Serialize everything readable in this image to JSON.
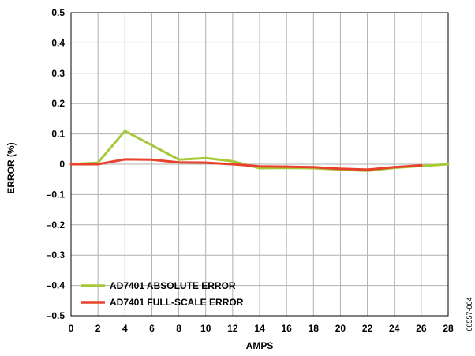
{
  "chart_data": {
    "type": "line",
    "xlabel": "AMPS",
    "ylabel": "ERROR (%)",
    "xlim": [
      0,
      28
    ],
    "ylim": [
      -0.5,
      0.5
    ],
    "x_ticks": [
      "0",
      "2",
      "4",
      "6",
      "8",
      "10",
      "12",
      "14",
      "16",
      "18",
      "20",
      "22",
      "24",
      "26",
      "28"
    ],
    "y_ticks": [
      "0.5",
      "0.4",
      "0.3",
      "0.2",
      "0.1",
      "0",
      "–0.1",
      "–0.2",
      "–0.3",
      "–0.4",
      "–0.5"
    ],
    "grid": true,
    "legend_position": "bottom-left",
    "series": [
      {
        "name": "AD7401 ABSOLUTE ERROR",
        "color": "#a6c93c",
        "x": [
          0,
          2,
          4,
          8,
          10,
          12,
          14,
          16,
          18,
          20,
          22,
          24,
          26,
          28
        ],
        "y": [
          0.0,
          0.005,
          0.11,
          0.015,
          0.02,
          0.01,
          -0.013,
          -0.012,
          -0.013,
          -0.018,
          -0.022,
          -0.012,
          -0.006,
          0.0
        ]
      },
      {
        "name": "AD7401 FULL-SCALE ERROR",
        "color": "#e8412c",
        "x": [
          0,
          2,
          4,
          6,
          8,
          10,
          12,
          14,
          16,
          18,
          20,
          22,
          24,
          26
        ],
        "y": [
          0.0,
          0.0,
          0.016,
          0.015,
          0.006,
          0.005,
          0.0,
          -0.007,
          -0.008,
          -0.01,
          -0.015,
          -0.018,
          -0.01,
          -0.004
        ]
      }
    ]
  },
  "figure_id": "08557-004"
}
